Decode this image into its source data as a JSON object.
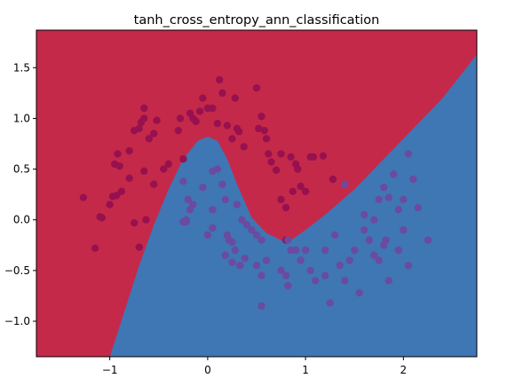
{
  "chart_data": {
    "type": "scatter",
    "title": "tanh_cross_entropy_ann_classification",
    "xlabel": "",
    "ylabel": "",
    "xlim": [
      -1.75,
      2.75
    ],
    "ylim": [
      -1.35,
      1.87
    ],
    "x_ticks": [
      -1,
      0,
      1,
      2
    ],
    "x_tick_labels": [
      "−1",
      "0",
      "1",
      "2"
    ],
    "y_ticks": [
      -1.0,
      -0.5,
      0.0,
      0.5,
      1.0,
      1.5
    ],
    "y_tick_labels": [
      "−1.0",
      "−0.5",
      "0.0",
      "0.5",
      "1.0",
      "1.5"
    ],
    "grid": false,
    "colors": {
      "class_0_region": "#c5294a",
      "class_1_region": "#3f76b4",
      "class_0_point": "#97114f",
      "class_1_point": "#6a4ba0"
    },
    "decision_boundary": {
      "x": [
        -1.0,
        -0.85,
        -0.7,
        -0.55,
        -0.4,
        -0.25,
        -0.1,
        0.0,
        0.1,
        0.2,
        0.3,
        0.45,
        0.6,
        0.75,
        0.85,
        1.0,
        1.2,
        1.5,
        1.8,
        2.1,
        2.4,
        2.75
      ],
      "y": [
        -1.35,
        -0.9,
        -0.45,
        -0.05,
        0.3,
        0.6,
        0.78,
        0.82,
        0.78,
        0.6,
        0.35,
        0.02,
        -0.13,
        -0.2,
        -0.2,
        -0.1,
        0.05,
        0.3,
        0.6,
        0.9,
        1.2,
        1.63
      ],
      "class_above": 0,
      "class_below": 1
    },
    "series": [
      {
        "class": 0,
        "points": [
          [
            -1.27,
            0.22
          ],
          [
            -1.15,
            -0.28
          ],
          [
            -1.08,
            0.02
          ],
          [
            -1.1,
            0.03
          ],
          [
            -1.0,
            0.15
          ],
          [
            -0.97,
            0.23
          ],
          [
            -0.93,
            0.24
          ],
          [
            -0.88,
            0.28
          ],
          [
            -0.95,
            0.55
          ],
          [
            -0.92,
            0.65
          ],
          [
            -0.9,
            0.53
          ],
          [
            -0.8,
            0.41
          ],
          [
            -0.8,
            0.68
          ],
          [
            -0.75,
            0.88
          ],
          [
            -0.7,
            0.9
          ],
          [
            -0.68,
            0.96
          ],
          [
            -0.65,
            1.0
          ],
          [
            -0.65,
            1.1
          ],
          [
            -0.55,
            0.85
          ],
          [
            -0.52,
            0.98
          ],
          [
            -0.6,
            0.8
          ],
          [
            -0.55,
            0.35
          ],
          [
            -0.65,
            0.48
          ],
          [
            -0.63,
            0.0
          ],
          [
            -0.75,
            -0.03
          ],
          [
            -0.7,
            -0.27
          ],
          [
            -0.45,
            0.5
          ],
          [
            -0.4,
            0.55
          ],
          [
            -0.3,
            0.88
          ],
          [
            -0.28,
            1.0
          ],
          [
            -0.18,
            1.05
          ],
          [
            -0.15,
            1.0
          ],
          [
            -0.12,
            0.97
          ],
          [
            -0.08,
            1.07
          ],
          [
            -0.05,
            1.2
          ],
          [
            -0.25,
            0.6
          ],
          [
            0.0,
            1.1
          ],
          [
            0.05,
            1.1
          ],
          [
            0.1,
            0.95
          ],
          [
            0.12,
            1.38
          ],
          [
            0.15,
            1.25
          ],
          [
            0.2,
            0.93
          ],
          [
            0.25,
            0.8
          ],
          [
            0.28,
            1.2
          ],
          [
            0.3,
            0.9
          ],
          [
            0.32,
            0.87
          ],
          [
            0.37,
            0.72
          ],
          [
            0.5,
            1.3
          ],
          [
            0.52,
            0.9
          ],
          [
            0.55,
            1.02
          ],
          [
            0.58,
            0.88
          ],
          [
            0.6,
            0.8
          ],
          [
            0.62,
            0.65
          ],
          [
            0.65,
            0.57
          ],
          [
            0.7,
            0.49
          ],
          [
            0.75,
            0.2
          ],
          [
            0.8,
            0.12
          ],
          [
            0.8,
            -0.2
          ],
          [
            0.85,
            0.62
          ],
          [
            0.87,
            0.28
          ],
          [
            0.9,
            0.55
          ],
          [
            0.92,
            0.5
          ],
          [
            0.95,
            0.33
          ],
          [
            1.0,
            0.28
          ],
          [
            1.05,
            0.62
          ],
          [
            1.08,
            0.62
          ],
          [
            1.18,
            0.63
          ],
          [
            1.28,
            0.4
          ],
          [
            0.75,
            0.65
          ]
        ]
      },
      {
        "class": 1,
        "points": [
          [
            -0.25,
            0.38
          ],
          [
            -0.2,
            0.2
          ],
          [
            -0.15,
            0.15
          ],
          [
            -0.18,
            0.1
          ],
          [
            -0.22,
            0.0
          ],
          [
            -0.25,
            -0.02
          ],
          [
            -0.22,
            -0.02
          ],
          [
            -0.05,
            0.32
          ],
          [
            0.05,
            0.48
          ],
          [
            0.1,
            0.5
          ],
          [
            0.15,
            0.35
          ],
          [
            0.18,
            0.2
          ],
          [
            0.05,
            0.1
          ],
          [
            0.05,
            -0.08
          ],
          [
            0.0,
            -0.15
          ],
          [
            0.2,
            -0.15
          ],
          [
            0.22,
            -0.2
          ],
          [
            0.25,
            -0.22
          ],
          [
            0.28,
            -0.3
          ],
          [
            0.18,
            -0.35
          ],
          [
            0.25,
            -0.42
          ],
          [
            0.33,
            -0.45
          ],
          [
            0.38,
            -0.38
          ],
          [
            0.3,
            0.15
          ],
          [
            0.35,
            0.0
          ],
          [
            0.4,
            -0.05
          ],
          [
            0.45,
            -0.1
          ],
          [
            0.5,
            -0.15
          ],
          [
            0.55,
            -0.2
          ],
          [
            0.5,
            -0.45
          ],
          [
            0.55,
            -0.55
          ],
          [
            0.6,
            -0.4
          ],
          [
            0.55,
            -0.85
          ],
          [
            0.75,
            -0.5
          ],
          [
            0.8,
            -0.55
          ],
          [
            0.82,
            -0.65
          ],
          [
            0.82,
            -0.2
          ],
          [
            0.85,
            -0.3
          ],
          [
            0.9,
            -0.3
          ],
          [
            0.95,
            -0.4
          ],
          [
            1.0,
            -0.3
          ],
          [
            1.05,
            -0.5
          ],
          [
            1.1,
            -0.6
          ],
          [
            1.2,
            -0.55
          ],
          [
            1.2,
            -0.3
          ],
          [
            1.25,
            -0.82
          ],
          [
            1.3,
            -0.15
          ],
          [
            1.35,
            -0.45
          ],
          [
            1.4,
            -0.6
          ],
          [
            1.45,
            -0.4
          ],
          [
            1.5,
            -0.3
          ],
          [
            1.55,
            -0.72
          ],
          [
            1.6,
            -0.1
          ],
          [
            1.65,
            -0.2
          ],
          [
            1.7,
            -0.35
          ],
          [
            1.75,
            -0.4
          ],
          [
            1.8,
            -0.25
          ],
          [
            1.82,
            -0.2
          ],
          [
            1.85,
            -0.6
          ],
          [
            1.75,
            0.2
          ],
          [
            1.8,
            0.32
          ],
          [
            1.85,
            0.22
          ],
          [
            1.9,
            0.45
          ],
          [
            1.95,
            0.1
          ],
          [
            2.0,
            0.2
          ],
          [
            2.0,
            -0.1
          ],
          [
            2.05,
            0.65
          ],
          [
            2.1,
            0.4
          ],
          [
            2.15,
            0.12
          ],
          [
            1.95,
            -0.3
          ],
          [
            2.25,
            -0.2
          ],
          [
            2.05,
            -0.45
          ],
          [
            1.7,
            0.0
          ],
          [
            1.6,
            0.05
          ],
          [
            1.4,
            0.35
          ]
        ]
      }
    ]
  }
}
